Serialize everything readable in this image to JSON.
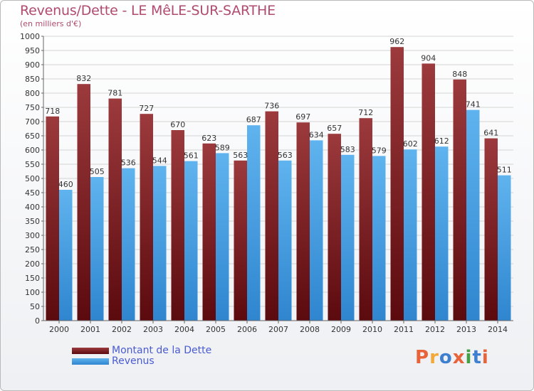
{
  "header": {
    "title": "Revenus/Dette - LE MêLE-SUR-SARTHE",
    "subtitle": "(en milliers d'€)"
  },
  "brand": {
    "text": "Proxiti",
    "colors": [
      "#e8623a",
      "#f2a93b",
      "#3f7fd0",
      "#e8623a",
      "#43a047",
      "#3f7fd0",
      "#e8623a"
    ]
  },
  "colors": {
    "debt_top": "#9c3a3d",
    "debt_bottom": "#5b0a0e",
    "revenue_top": "#5fb3ee",
    "revenue_bottom": "#2f86cf",
    "title": "#b04a6e",
    "legend_text": "#4a5bd0"
  },
  "chart_data": {
    "type": "bar",
    "categories": [
      "2000",
      "2001",
      "2002",
      "2003",
      "2004",
      "2005",
      "2006",
      "2007",
      "2008",
      "2009",
      "2010",
      "2011",
      "2012",
      "2013",
      "2014"
    ],
    "series": [
      {
        "name": "Montant de la Dette",
        "values": [
          718,
          832,
          781,
          727,
          670,
          623,
          563,
          736,
          697,
          657,
          712,
          962,
          904,
          848,
          641
        ]
      },
      {
        "name": "Revenus",
        "values": [
          460,
          505,
          536,
          544,
          561,
          589,
          687,
          563,
          634,
          583,
          579,
          602,
          612,
          741,
          511
        ]
      }
    ],
    "ylim": [
      0,
      1000
    ],
    "yticks": [
      0,
      50,
      100,
      150,
      200,
      250,
      300,
      350,
      400,
      450,
      500,
      550,
      600,
      650,
      700,
      750,
      800,
      850,
      900,
      950,
      1000
    ],
    "grid": true,
    "legend": "bottom-left"
  }
}
